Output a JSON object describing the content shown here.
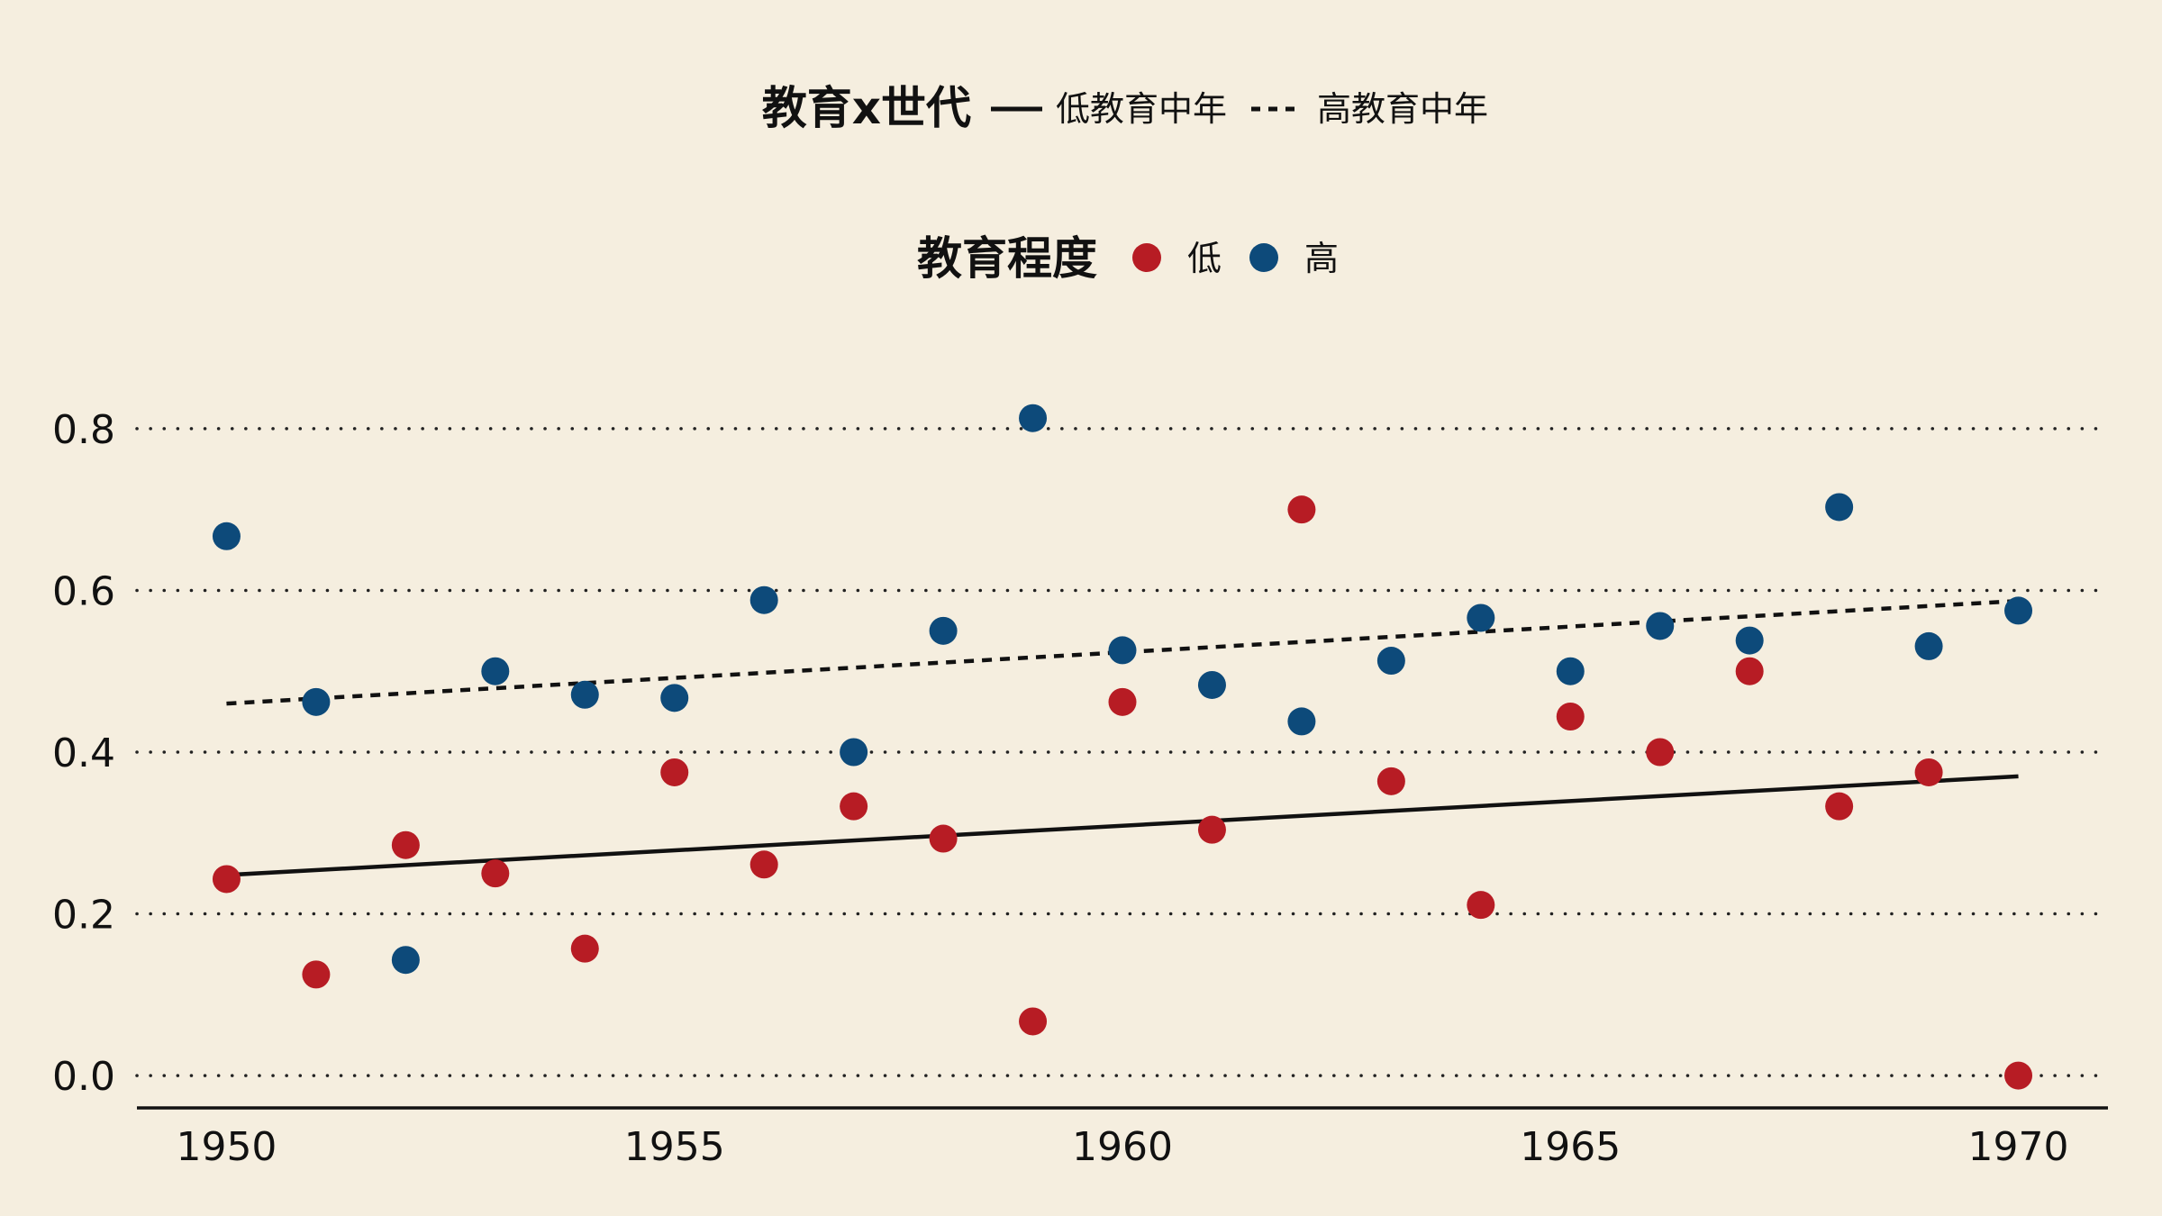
{
  "chart_data": {
    "type": "scatter",
    "background": "#f5eedf",
    "x_ticks": [
      "1950",
      "1955",
      "1960",
      "1965",
      "1970"
    ],
    "y_ticks": [
      "0.0",
      "0.2",
      "0.4",
      "0.6",
      "0.8"
    ],
    "xlim": [
      1949,
      1971
    ],
    "ylim": [
      -0.04,
      0.84
    ],
    "grid": "horizontal dotted",
    "legend_placement": "top-center",
    "line_legend": {
      "title": "教育x世代",
      "items": [
        {
          "label": "低教育中年",
          "style": "solid"
        },
        {
          "label": "高教育中年",
          "style": "dashed"
        }
      ]
    },
    "point_legend": {
      "title": "教育程度",
      "items": [
        {
          "label": "低",
          "color": "#b71c24"
        },
        {
          "label": "高",
          "color": "#0d4a7a"
        }
      ]
    },
    "series": [
      {
        "name": "低",
        "color": "#b71c24",
        "x": [
          1950,
          1951,
          1952,
          1953,
          1954,
          1955,
          1956,
          1957,
          1958,
          1959,
          1960,
          1961,
          1962,
          1963,
          1964,
          1965,
          1966,
          1967,
          1968,
          1969,
          1970
        ],
        "y": [
          0.243,
          0.125,
          0.285,
          0.25,
          0.157,
          0.375,
          0.261,
          0.333,
          0.293,
          0.067,
          0.462,
          0.304,
          0.7,
          0.364,
          0.211,
          0.444,
          0.4,
          0.5,
          0.333,
          0.375,
          0.0
        ]
      },
      {
        "name": "高",
        "color": "#0d4a7a",
        "x": [
          1950,
          1951,
          1952,
          1953,
          1954,
          1955,
          1956,
          1957,
          1958,
          1959,
          1960,
          1961,
          1962,
          1963,
          1964,
          1965,
          1966,
          1967,
          1968,
          1969,
          1970
        ],
        "y": [
          0.667,
          0.462,
          0.143,
          0.5,
          0.471,
          0.467,
          0.588,
          0.4,
          0.55,
          0.813,
          0.526,
          0.483,
          0.438,
          0.513,
          0.566,
          0.5,
          0.556,
          0.538,
          0.703,
          0.531,
          0.575
        ]
      }
    ],
    "trend_lines": [
      {
        "name": "低教育中年",
        "style": "solid",
        "x": [
          1950,
          1970
        ],
        "y": [
          0.248,
          0.37
        ]
      },
      {
        "name": "高教育中年",
        "style": "dashed",
        "x": [
          1950,
          1970
        ],
        "y": [
          0.46,
          0.587
        ]
      }
    ]
  }
}
